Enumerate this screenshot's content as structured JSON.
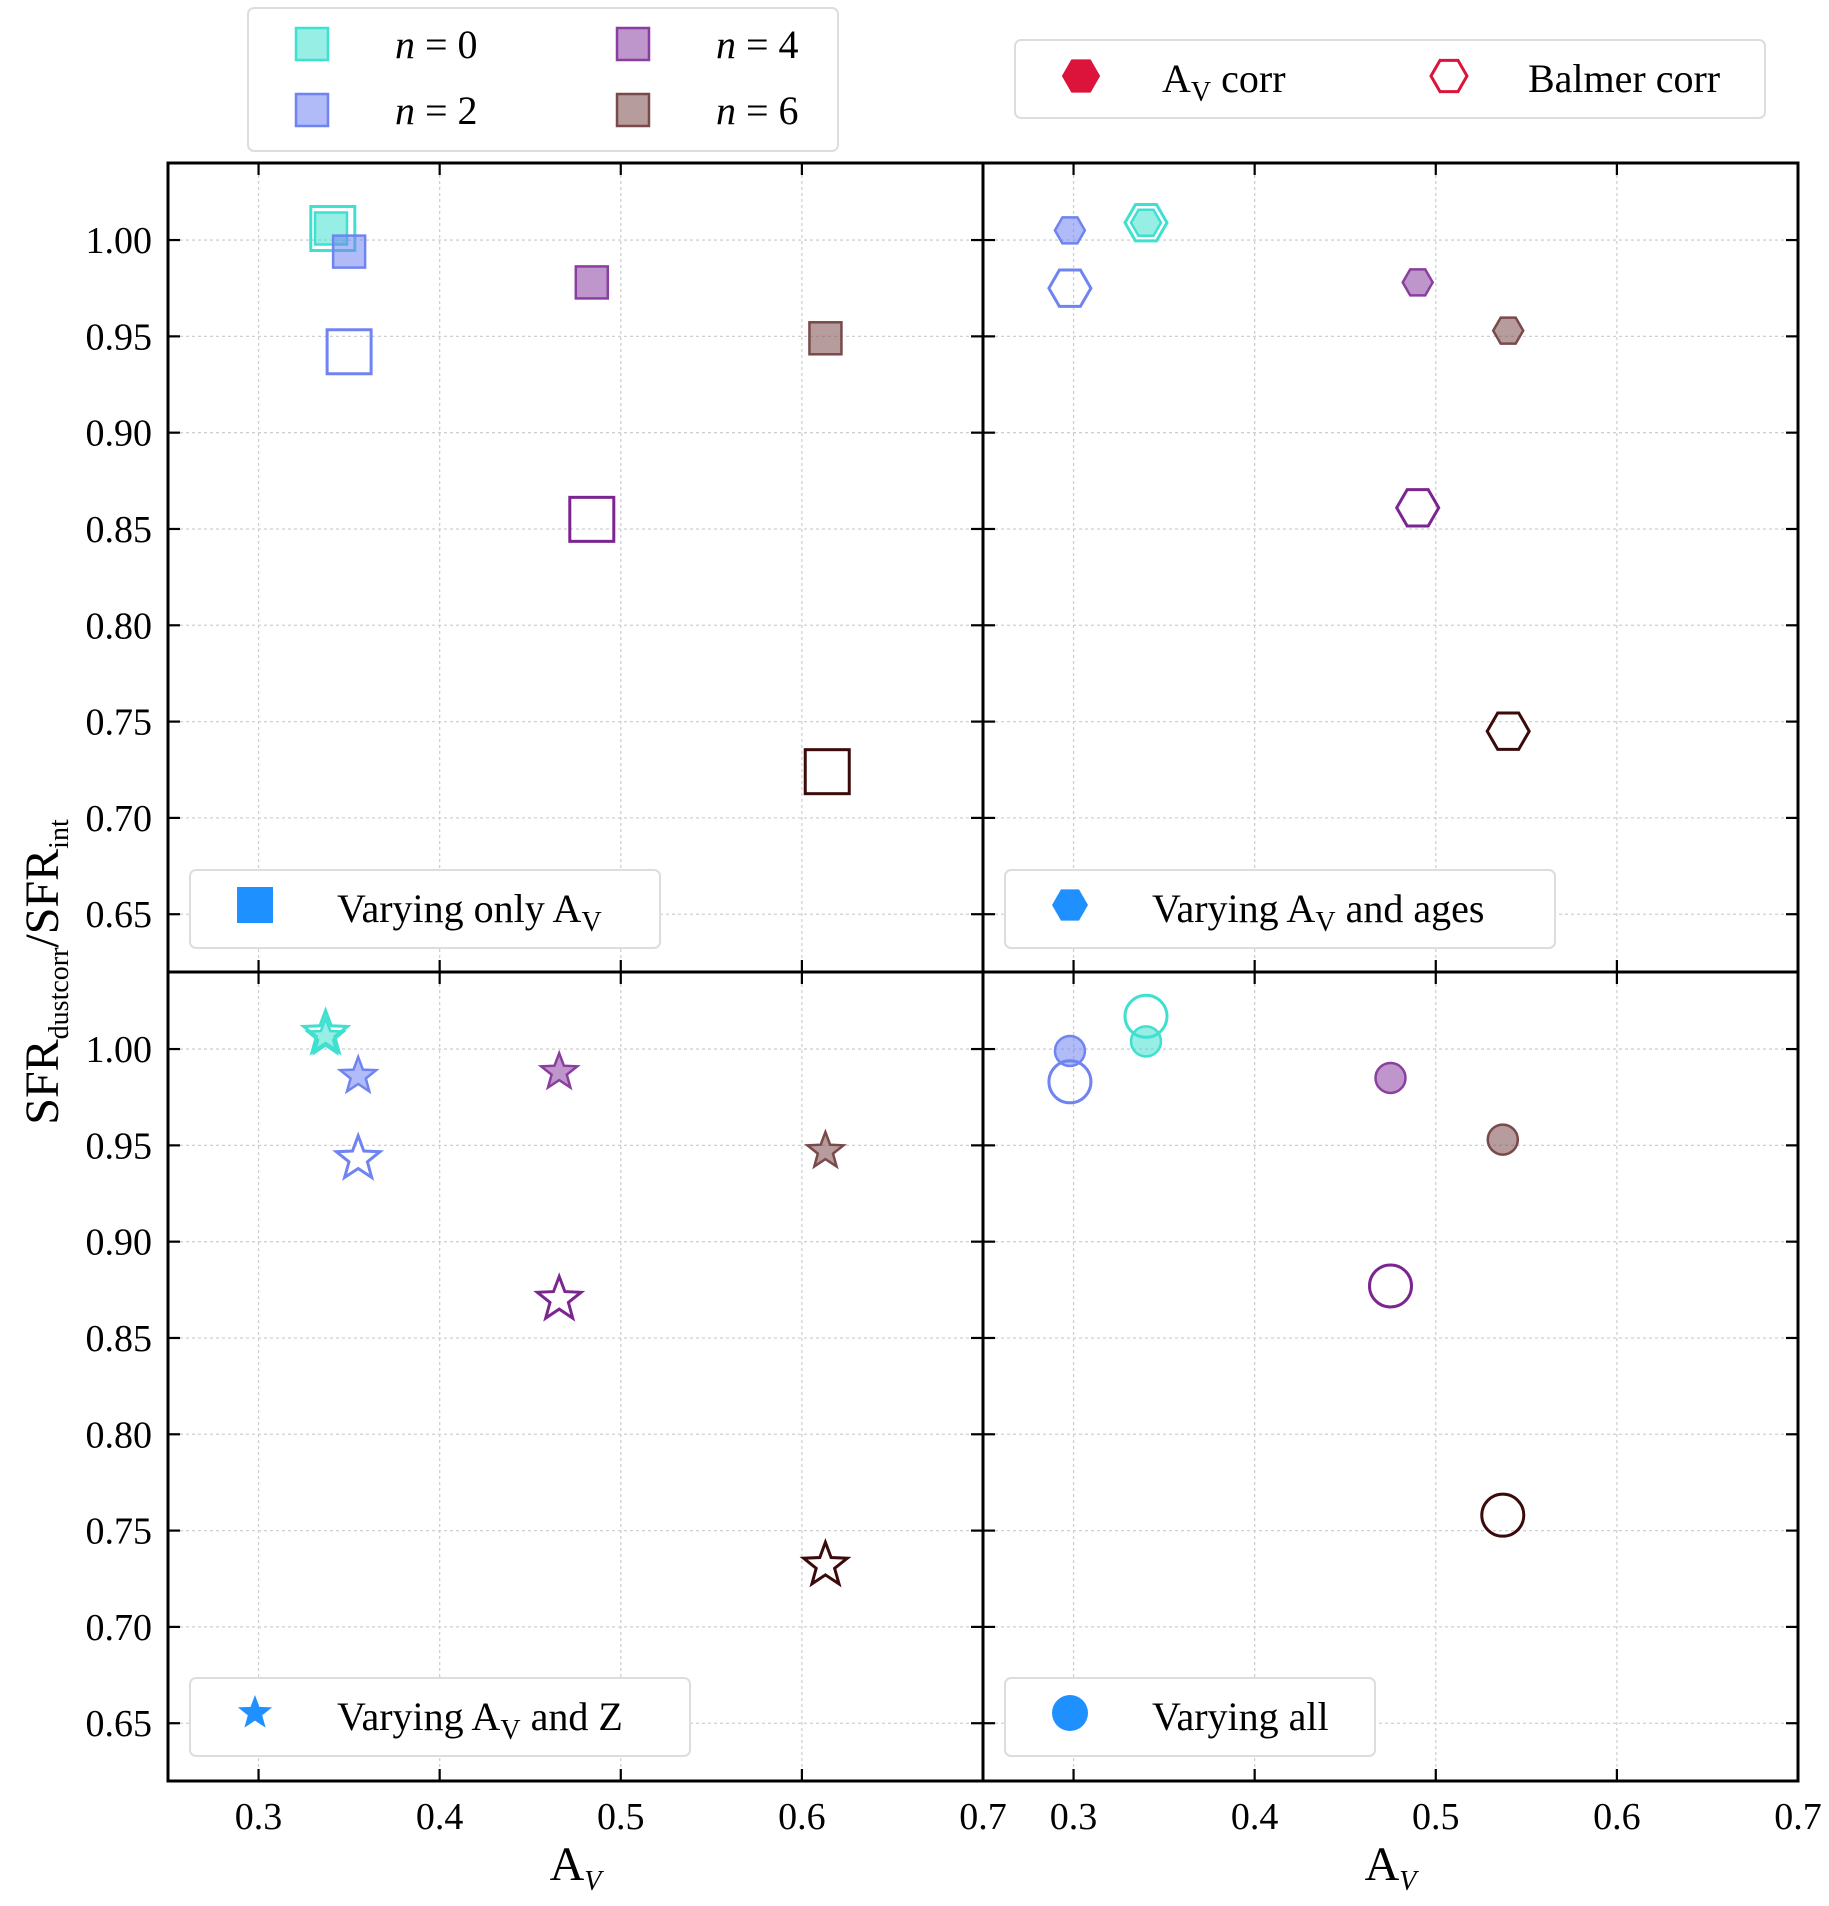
{
  "chart_data": {
    "type": "scatter",
    "ylabel": "SFR",
    "ylabel_sub1": "dustcorr",
    "ylabel_mid": "/SFR",
    "ylabel_sub2": "int",
    "xlabel": "A",
    "xlabel_sub": "V",
    "xlim": [
      0.25,
      0.7
    ],
    "ylim": [
      0.62,
      1.04
    ],
    "x_ticks": [
      "0.3",
      "0.4",
      "0.5",
      "0.6",
      "0.7"
    ],
    "y_ticks": [
      "0.65",
      "0.70",
      "0.75",
      "0.80",
      "0.85",
      "0.90",
      "0.95",
      "1.00"
    ],
    "x_tick_values": [
      0.3,
      0.4,
      0.5,
      0.6,
      0.7
    ],
    "y_tick_values": [
      0.65,
      0.7,
      0.75,
      0.8,
      0.85,
      0.9,
      0.95,
      1.0
    ],
    "n_legend": [
      {
        "label_var": "n",
        "label_rest": " = 0",
        "color": "#40e0d0"
      },
      {
        "label_var": "n",
        "label_rest": " = 2",
        "color": "#6f84f0"
      },
      {
        "label_var": "n",
        "label_rest": " = 4",
        "color": "#8a3fa0"
      },
      {
        "label_var": "n",
        "label_rest": " = 6",
        "color": "#7a4a4a"
      }
    ],
    "corr_legend": [
      {
        "label_main": "A",
        "label_sub": "V",
        "label_rest": " corr",
        "filled": true
      },
      {
        "label_main": "Balmer corr",
        "label_sub": "",
        "label_rest": "",
        "filled": false
      }
    ],
    "marker_color": "#dc143c",
    "panel_key_color": "#1e90ff",
    "panels": [
      {
        "marker": "square",
        "label_pre": "Varying only A",
        "label_sub": "V",
        "label_post": "",
        "points": [
          {
            "n": 0,
            "x": 0.34,
            "y": 1.006,
            "filled": true
          },
          {
            "n": 0,
            "x": 0.341,
            "y": 1.006,
            "filled": false
          },
          {
            "n": 2,
            "x": 0.35,
            "y": 0.994,
            "filled": true
          },
          {
            "n": 2,
            "x": 0.35,
            "y": 0.942,
            "filled": false
          },
          {
            "n": 4,
            "x": 0.484,
            "y": 0.978,
            "filled": true
          },
          {
            "n": 4,
            "x": 0.484,
            "y": 0.855,
            "filled": false
          },
          {
            "n": 6,
            "x": 0.613,
            "y": 0.949,
            "filled": true
          },
          {
            "n": 6,
            "x": 0.614,
            "y": 0.724,
            "filled": false
          }
        ]
      },
      {
        "marker": "hexagon",
        "label_pre": "Varying A",
        "label_sub": "V",
        "label_post": " and ages",
        "points": [
          {
            "n": 0,
            "x": 0.34,
            "y": 1.009,
            "filled": true
          },
          {
            "n": 0,
            "x": 0.34,
            "y": 1.009,
            "filled": false
          },
          {
            "n": 2,
            "x": 0.298,
            "y": 1.005,
            "filled": true
          },
          {
            "n": 2,
            "x": 0.298,
            "y": 0.975,
            "filled": false
          },
          {
            "n": 4,
            "x": 0.49,
            "y": 0.978,
            "filled": true
          },
          {
            "n": 4,
            "x": 0.49,
            "y": 0.861,
            "filled": false
          },
          {
            "n": 6,
            "x": 0.54,
            "y": 0.953,
            "filled": true
          },
          {
            "n": 6,
            "x": 0.54,
            "y": 0.745,
            "filled": false
          }
        ]
      },
      {
        "marker": "star",
        "label_pre": "Varying A",
        "label_sub": "V",
        "label_post": " and Z",
        "points": [
          {
            "n": 0,
            "x": 0.337,
            "y": 1.006,
            "filled": true
          },
          {
            "n": 0,
            "x": 0.337,
            "y": 1.008,
            "filled": false
          },
          {
            "n": 2,
            "x": 0.355,
            "y": 0.986,
            "filled": true
          },
          {
            "n": 2,
            "x": 0.355,
            "y": 0.943,
            "filled": false
          },
          {
            "n": 4,
            "x": 0.466,
            "y": 0.988,
            "filled": true
          },
          {
            "n": 4,
            "x": 0.466,
            "y": 0.87,
            "filled": false
          },
          {
            "n": 6,
            "x": 0.613,
            "y": 0.947,
            "filled": true
          },
          {
            "n": 6,
            "x": 0.613,
            "y": 0.732,
            "filled": false
          }
        ]
      },
      {
        "marker": "circle",
        "label_pre": "Varying all",
        "label_sub": "",
        "label_post": "",
        "points": [
          {
            "n": 0,
            "x": 0.34,
            "y": 1.004,
            "filled": true
          },
          {
            "n": 0,
            "x": 0.34,
            "y": 1.017,
            "filled": false
          },
          {
            "n": 2,
            "x": 0.298,
            "y": 0.999,
            "filled": true
          },
          {
            "n": 2,
            "x": 0.298,
            "y": 0.983,
            "filled": false
          },
          {
            "n": 4,
            "x": 0.475,
            "y": 0.985,
            "filled": true
          },
          {
            "n": 4,
            "x": 0.475,
            "y": 0.877,
            "filled": false
          },
          {
            "n": 6,
            "x": 0.537,
            "y": 0.953,
            "filled": true
          },
          {
            "n": 6,
            "x": 0.537,
            "y": 0.758,
            "filled": false
          }
        ]
      }
    ]
  }
}
